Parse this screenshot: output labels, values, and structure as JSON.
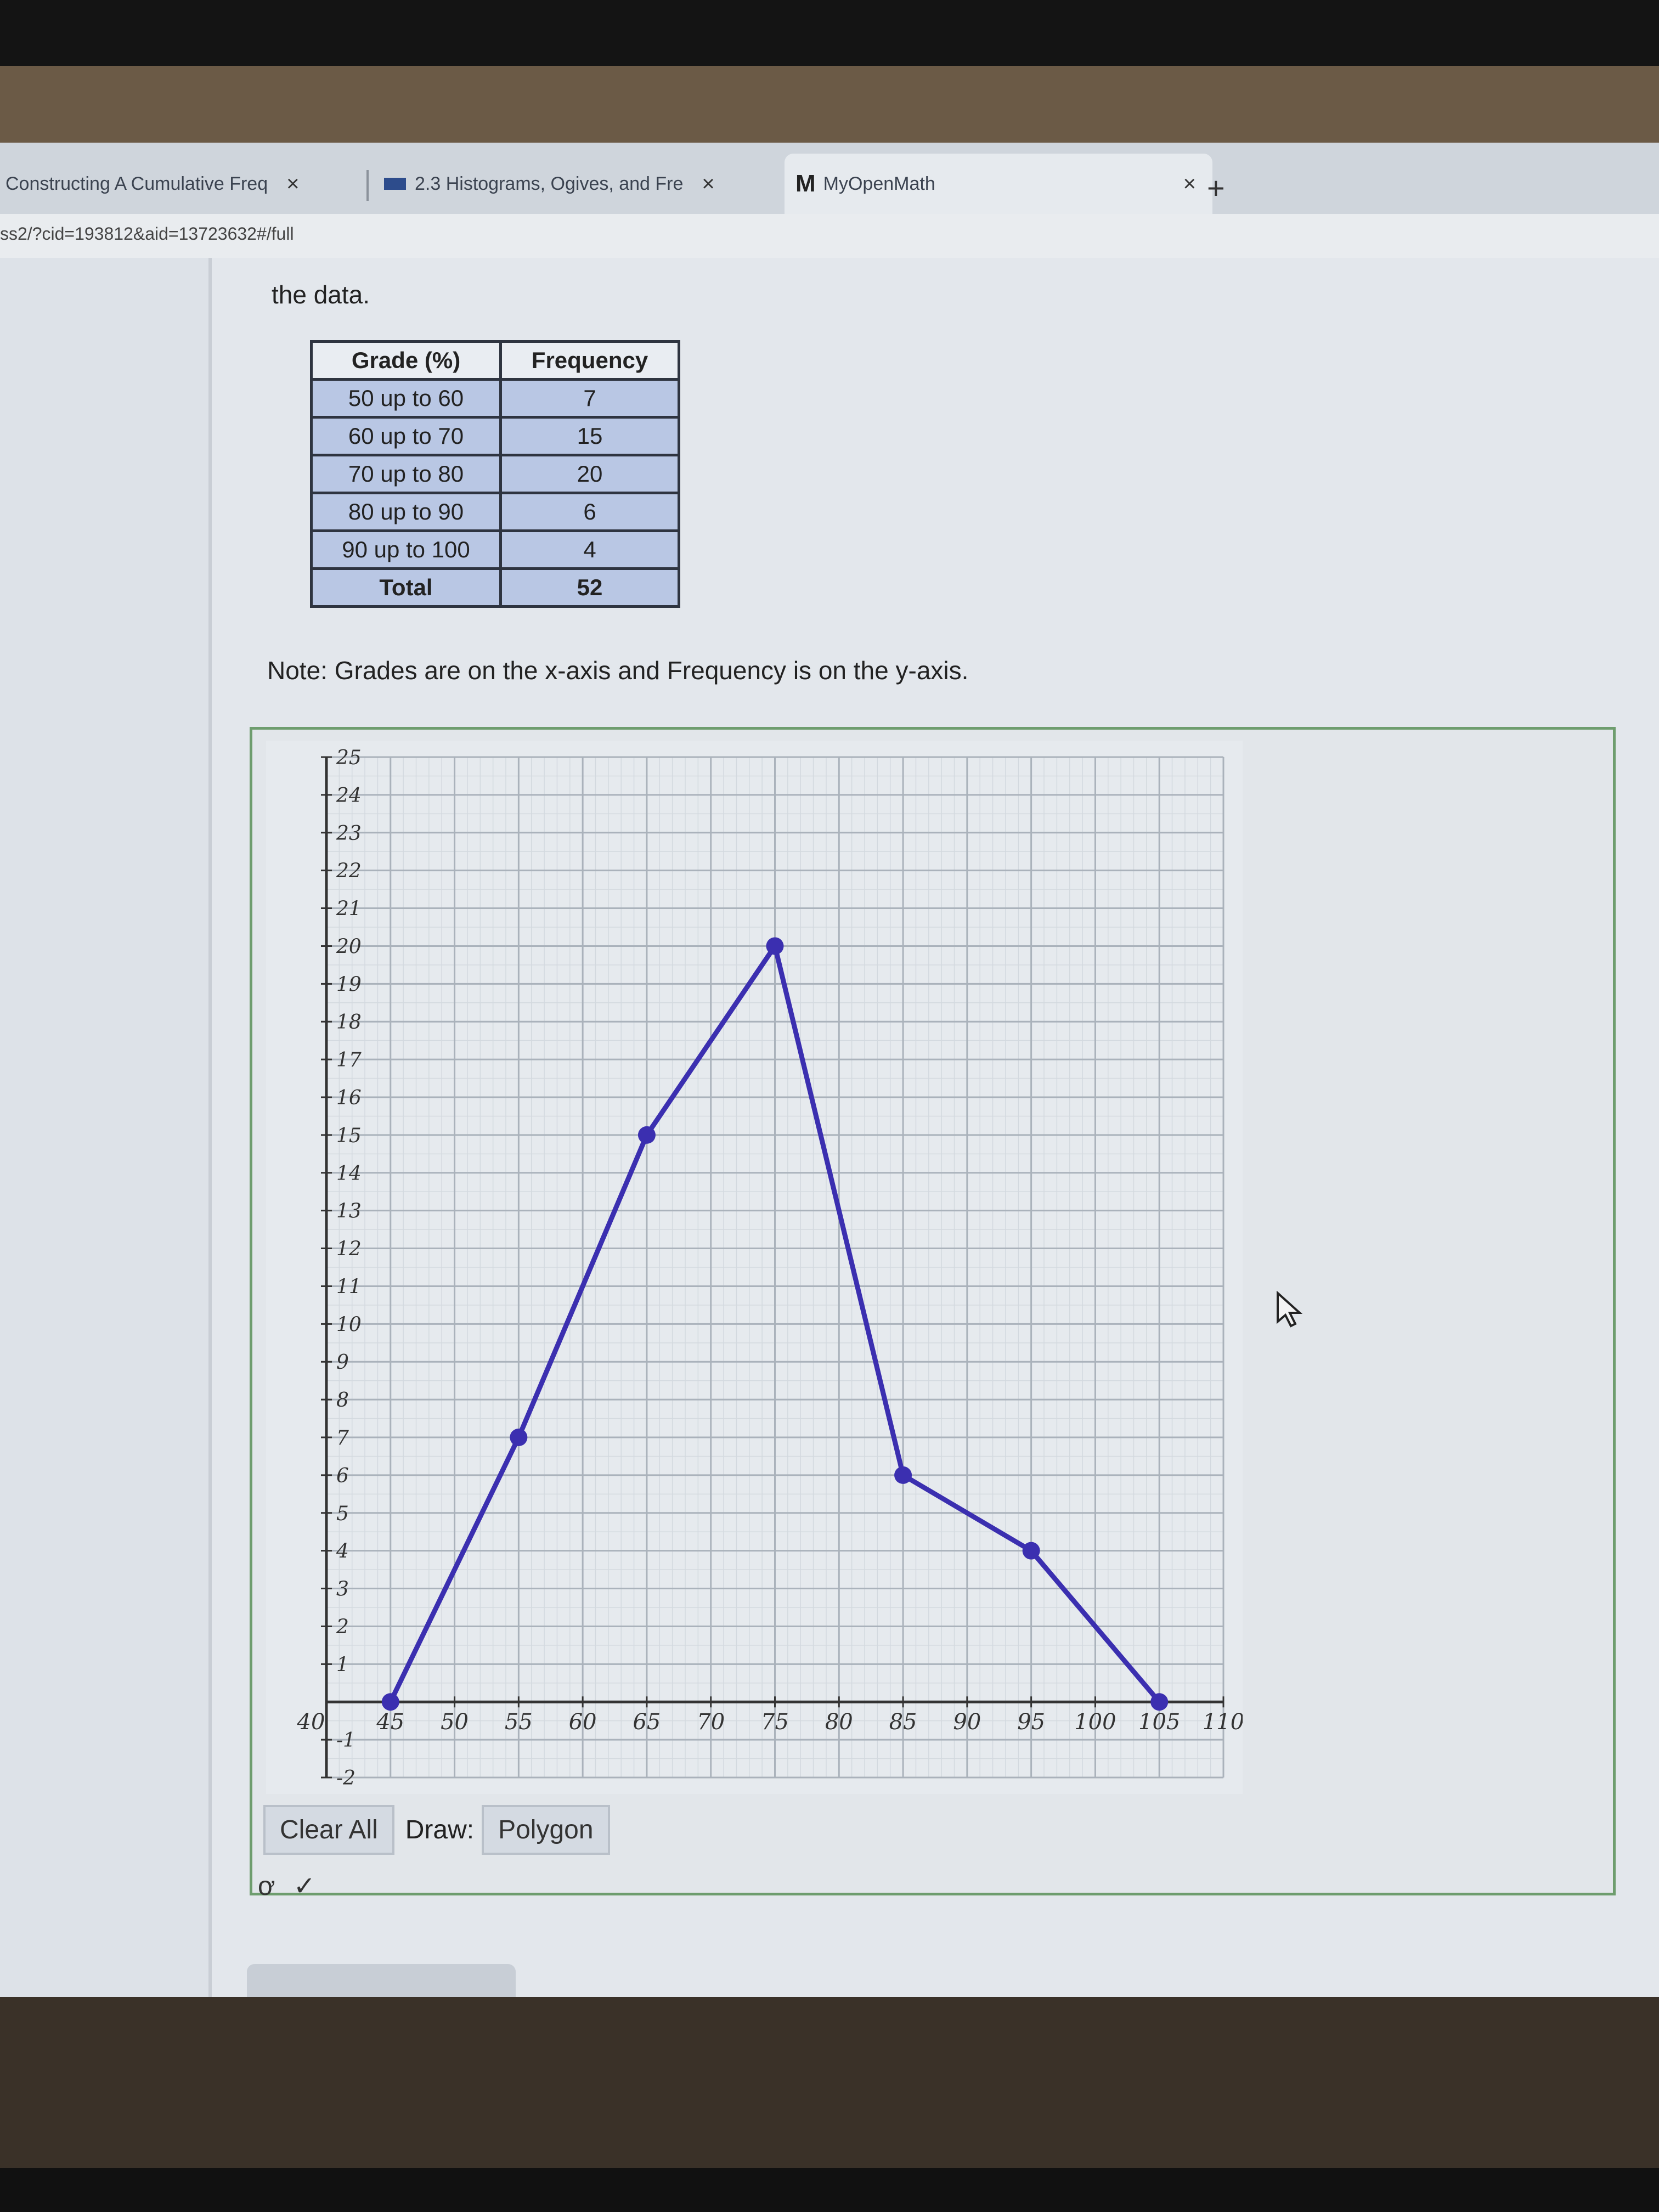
{
  "tabs": [
    {
      "label": "Constructing A Cumulative Freq",
      "close": "×"
    },
    {
      "label": "2.3 Histograms, Ogives, and Fre",
      "close": "×"
    },
    {
      "label": "MyOpenMath",
      "icon": "M",
      "close": "×"
    }
  ],
  "new_tab": "+",
  "url": "ss2/?cid=193812&aid=13723632#/full",
  "intro_text": "the data.",
  "table": {
    "headers": [
      "Grade (%)",
      "Frequency"
    ],
    "rows": [
      [
        "50 up to 60",
        "7"
      ],
      [
        "60 up to 70",
        "15"
      ],
      [
        "70 up to 80",
        "20"
      ],
      [
        "80 up to 90",
        "6"
      ],
      [
        "90 up to 100",
        "4"
      ]
    ],
    "total": [
      "Total",
      "52"
    ]
  },
  "note": "Note: Grades are on the x-axis and Frequency is on the y-axis.",
  "chart_data": {
    "type": "line",
    "xlim": [
      40,
      110
    ],
    "ylim": [
      -2,
      25
    ],
    "grid": true,
    "x_ticks": [
      "40",
      "45",
      "50",
      "55",
      "60",
      "65",
      "70",
      "75",
      "80",
      "85",
      "90",
      "95",
      "100",
      "105",
      "110"
    ],
    "y_ticks": [
      "-2",
      "-1",
      "1",
      "2",
      "3",
      "4",
      "5",
      "6",
      "7",
      "8",
      "9",
      "10",
      "11",
      "12",
      "13",
      "14",
      "15",
      "16",
      "17",
      "18",
      "19",
      "20",
      "21",
      "22",
      "23",
      "24",
      "25"
    ],
    "series": [
      {
        "name": "Frequency polygon",
        "x": [
          45,
          55,
          65,
          75,
          85,
          95,
          105
        ],
        "y": [
          0,
          7,
          15,
          20,
          6,
          4,
          0
        ],
        "color": "#3b2fb0"
      }
    ]
  },
  "controls": {
    "clear_all": "Clear All",
    "draw_label": "Draw:",
    "draw_mode": "Polygon"
  },
  "tools": {
    "pointer_icon": "ơ",
    "check_icon": "✓"
  },
  "colors": {
    "line": "#3b2fb0",
    "table_cell": "#b9c7e4",
    "box_border": "#6e9d6e"
  }
}
